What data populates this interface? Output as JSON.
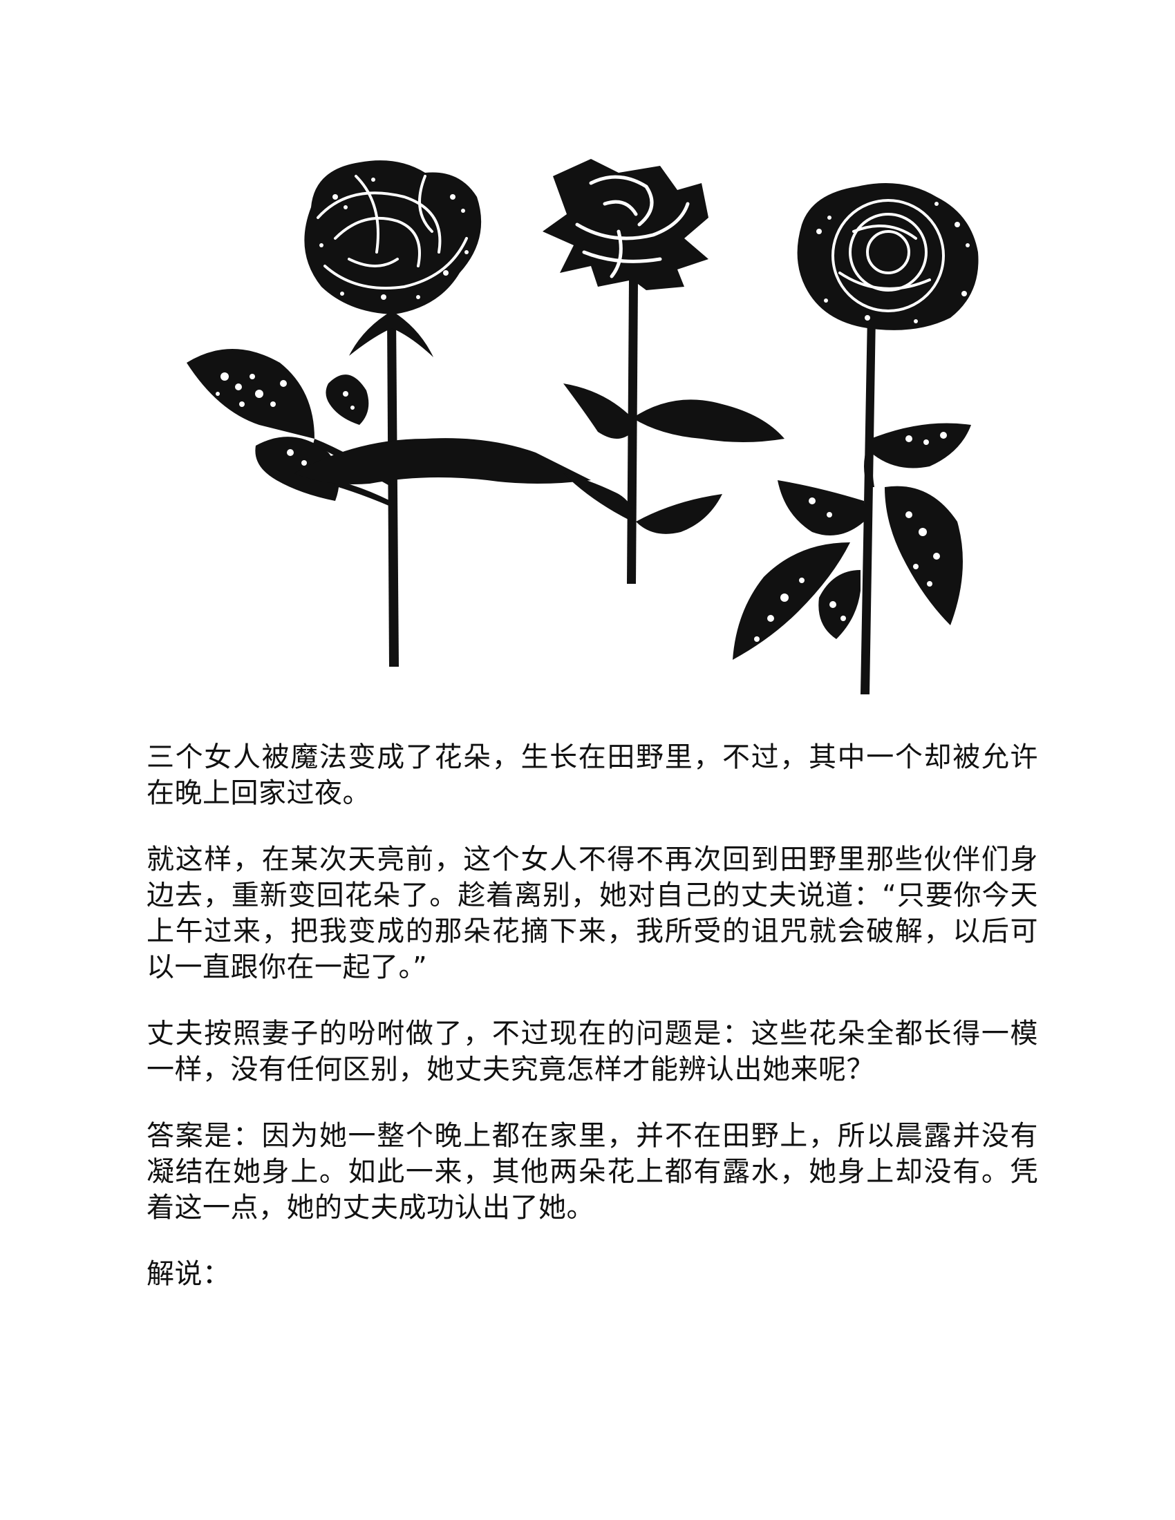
{
  "illustration": {
    "icon": "three-roses-silhouette",
    "colors": {
      "ink": "#111111",
      "paper": "#ffffff"
    }
  },
  "paragraphs": [
    "三个女人被魔法变成了花朵，生长在田野里，不过，其中一个却被允许在晚上回家过夜。",
    "就这样，在某次天亮前，这个女人不得不再次回到田野里那些伙伴们身边去，重新变回花朵了。趁着离别，她对自己的丈夫说道：“只要你今天上午过来，把我变成的那朵花摘下来，我所受的诅咒就会破解，以后可以一直跟你在一起了。”",
    "丈夫按照妻子的吩咐做了，不过现在的问题是：这些花朵全都长得一模一样，没有任何区别，她丈夫究竟怎样才能辨认出她来呢？",
    "答案是：因为她一整个晚上都在家里，并不在田野上，所以晨露并没有凝结在她身上。如此一来，其他两朵花上都有露水，她身上却没有。凭着这一点，她的丈夫成功认出了她。",
    "解说："
  ]
}
